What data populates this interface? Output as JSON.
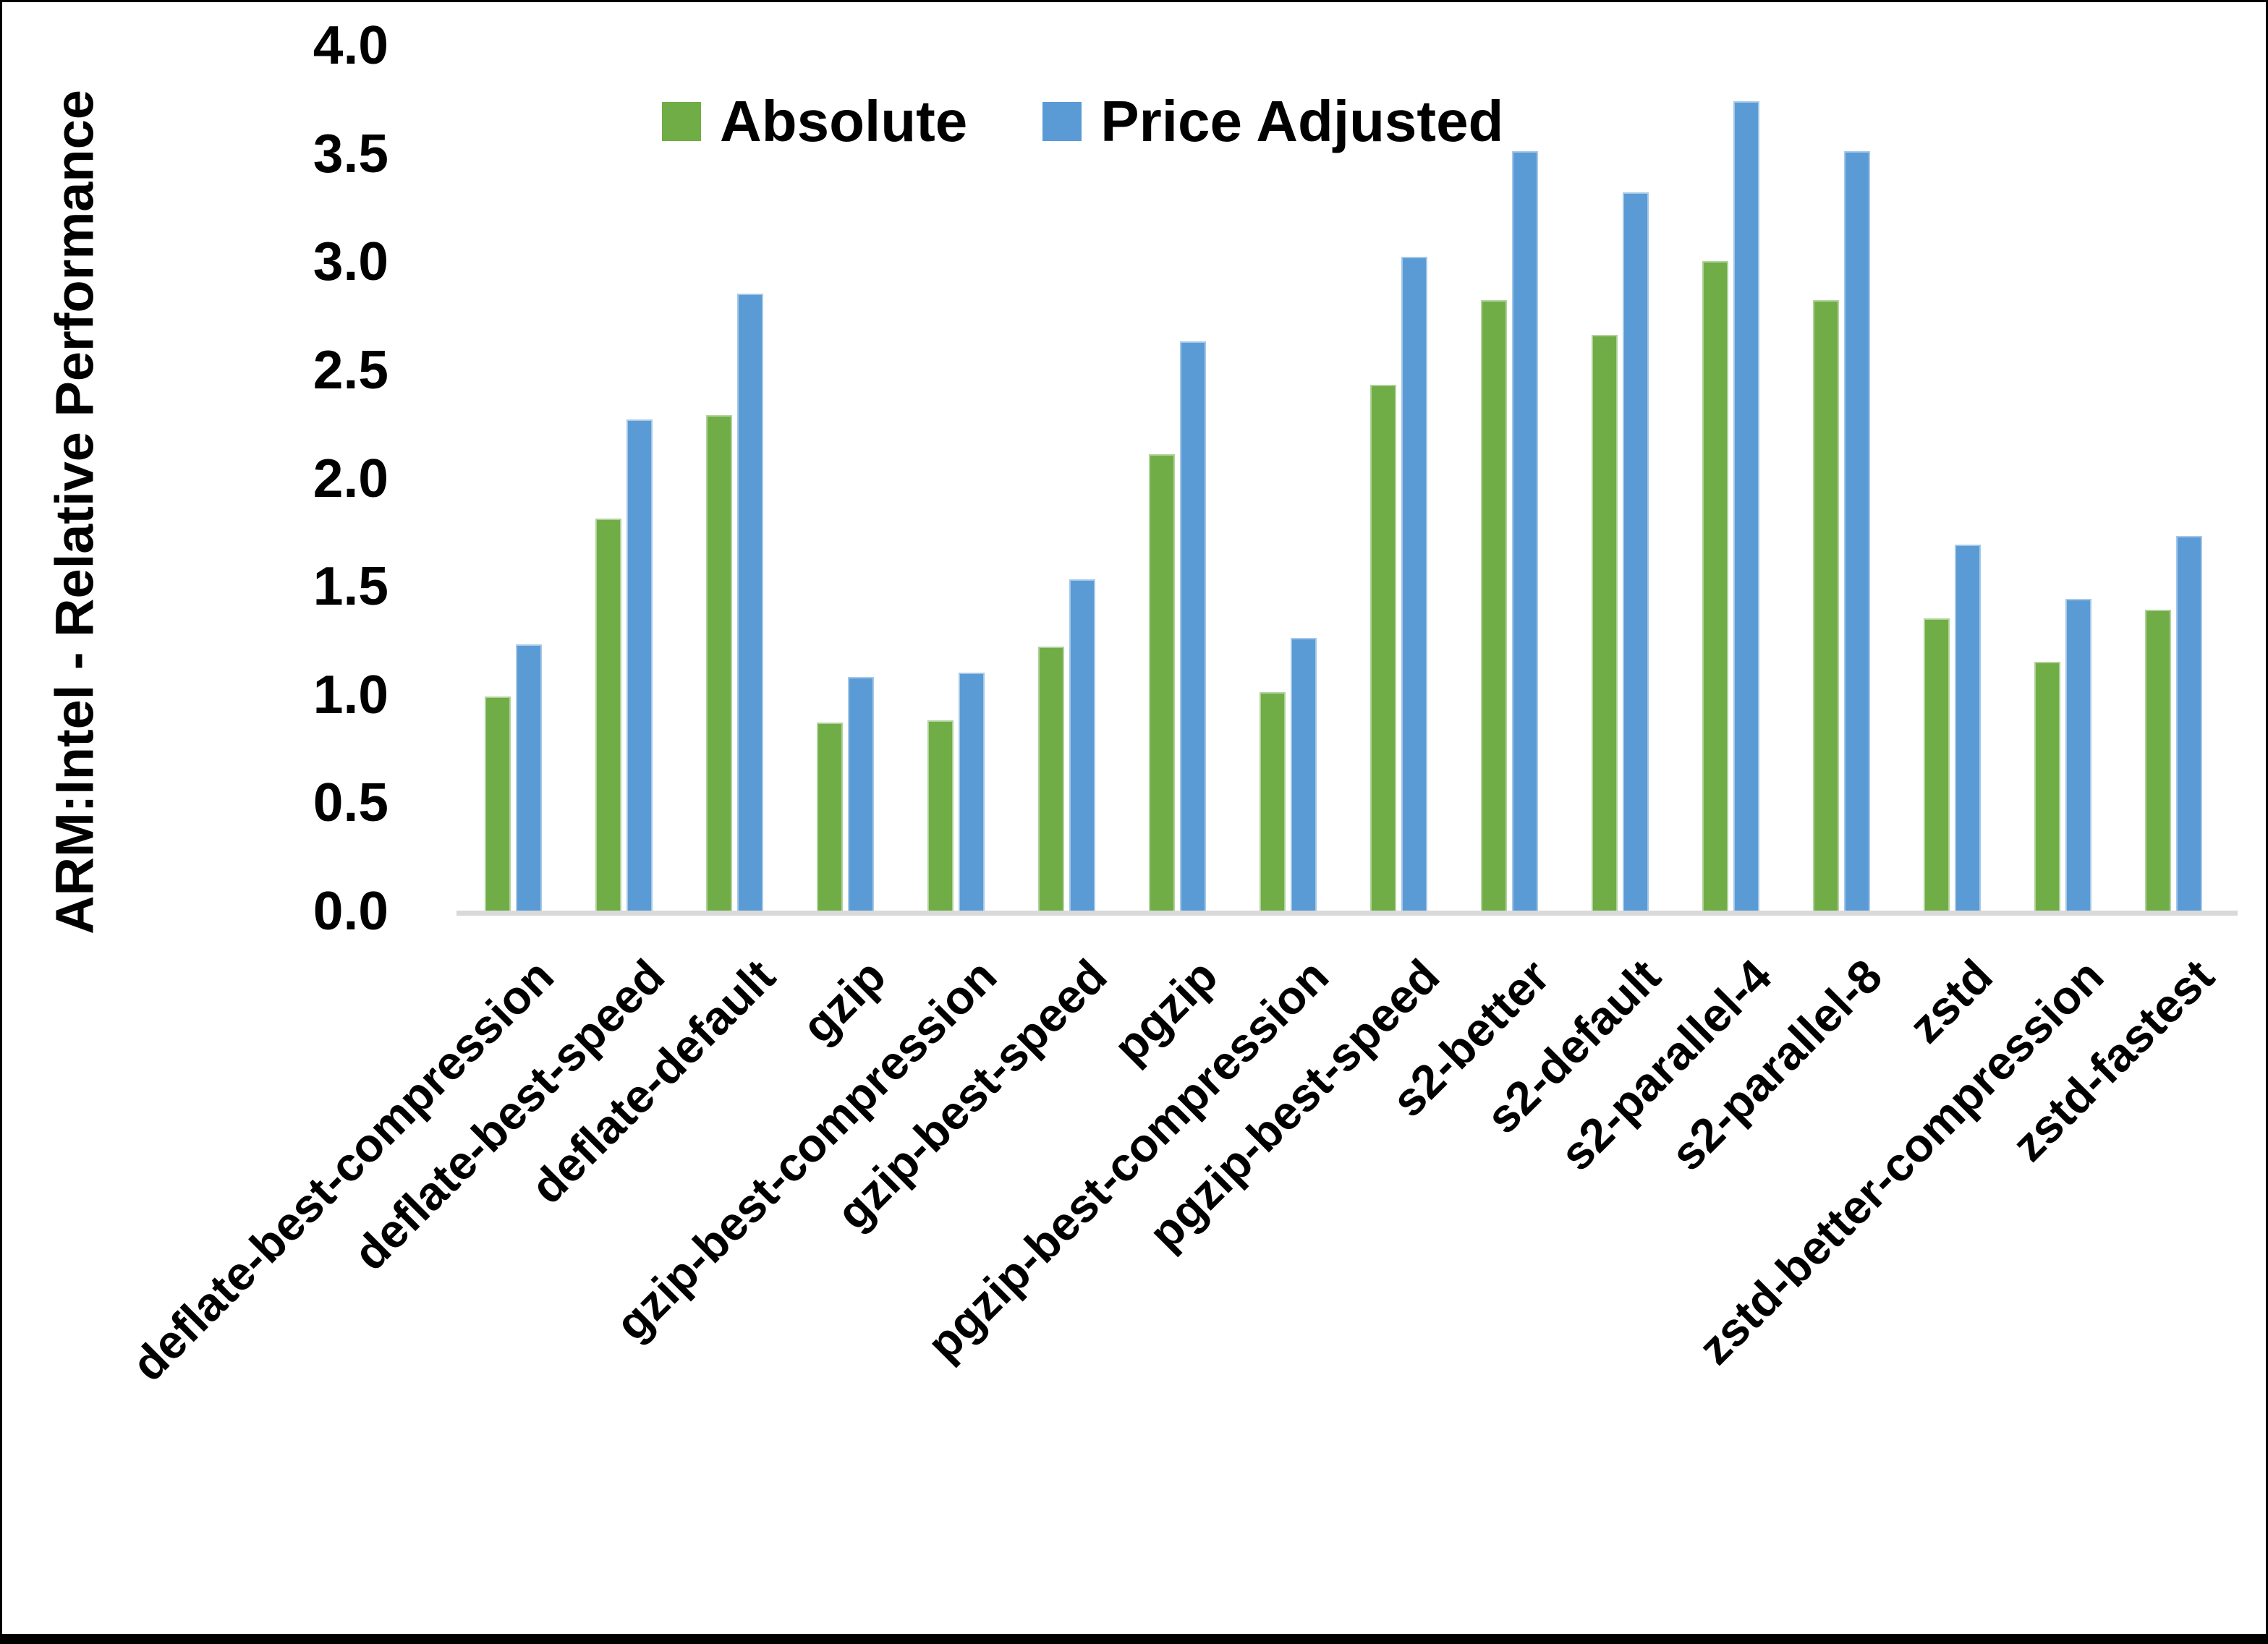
{
  "chart_data": {
    "type": "bar",
    "title": "",
    "ylabel": "ARM:Intel - Relative Performance",
    "xlabel": "",
    "ylim": [
      0.0,
      4.0
    ],
    "ytick_labels": [
      "0.0",
      "0.5",
      "1.0",
      "1.5",
      "2.0",
      "2.5",
      "3.0",
      "3.5",
      "4.0"
    ],
    "grid": false,
    "legend_position": "top",
    "axis_line_color": "#d9d9d9",
    "categories": [
      "deflate-best-compression",
      "deflate-best-speed",
      "deflate-default",
      "gzip",
      "gzip-best-compression",
      "gzip-best-speed",
      "pgzip",
      "pgzip-best-compression",
      "pgzip-best-speed",
      "s2-better",
      "s2-default",
      "s2-parallel-4",
      "s2-parallel-8",
      "zstd",
      "zstd-better-compression",
      "zstd-fastest"
    ],
    "series": [
      {
        "name": "Absolute",
        "color": "#70AD47",
        "values": [
          0.99,
          1.81,
          2.29,
          0.87,
          0.88,
          1.22,
          2.11,
          1.01,
          2.43,
          2.82,
          2.66,
          3.0,
          2.82,
          1.35,
          1.15,
          1.39
        ]
      },
      {
        "name": "Price Adjusted",
        "color": "#5B9BD5",
        "values": [
          1.23,
          2.27,
          2.85,
          1.08,
          1.1,
          1.53,
          2.63,
          1.26,
          3.02,
          3.51,
          3.32,
          3.74,
          3.51,
          1.69,
          1.44,
          1.73
        ]
      }
    ]
  }
}
